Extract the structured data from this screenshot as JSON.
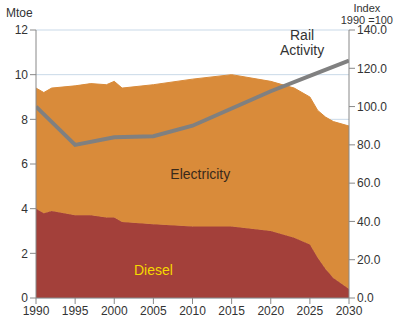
{
  "chart_data": {
    "type": "stacked_area_line",
    "y_label": "Mtoe",
    "y2_label": [
      "Index",
      "1990 =100"
    ],
    "x": [
      1990,
      1991,
      1992,
      1995,
      1997,
      1999,
      2000,
      2001,
      2005,
      2010,
      2015,
      2020,
      2023,
      2025,
      2026,
      2027,
      2028,
      2030
    ],
    "xlim": [
      1990,
      2030
    ],
    "xticks": [
      1990,
      1995,
      2000,
      2005,
      2010,
      2015,
      2020,
      2025,
      2030
    ],
    "ylim": [
      0,
      12
    ],
    "yticks": [
      0,
      2,
      4,
      6,
      8,
      10,
      12
    ],
    "y2lim": [
      0,
      140
    ],
    "y2ticks": [
      {
        "value": 0,
        "label": "0.0"
      },
      {
        "value": 20,
        "label": "20.0"
      },
      {
        "value": 40,
        "label": "40.0"
      },
      {
        "value": 60,
        "label": "60.0"
      },
      {
        "value": 80,
        "label": "80.0"
      },
      {
        "value": 100,
        "label": "100.0"
      },
      {
        "value": 120,
        "label": "120.0"
      },
      {
        "value": 140,
        "label": "140.0"
      }
    ],
    "stacked": true,
    "grid": true,
    "series": [
      {
        "name": "Diesel",
        "type": "area",
        "color": "#A3403A",
        "values": [
          4.0,
          3.8,
          3.9,
          3.7,
          3.7,
          3.6,
          3.6,
          3.4,
          3.3,
          3.2,
          3.2,
          3.0,
          2.7,
          2.4,
          1.8,
          1.3,
          0.9,
          0.4
        ]
      },
      {
        "name": "Electricity",
        "type": "area",
        "color": "#D98B3A",
        "values": [
          5.4,
          5.4,
          5.5,
          5.8,
          5.9,
          5.95,
          6.1,
          6.0,
          6.25,
          6.6,
          6.8,
          6.7,
          6.7,
          6.6,
          6.6,
          6.8,
          7.0,
          7.3
        ]
      },
      {
        "name": "Rail Activity",
        "type": "line",
        "axis": "y2",
        "color": "#808080",
        "values": [
          100,
          null,
          null,
          80,
          null,
          null,
          84,
          null,
          84.5,
          90,
          99,
          108,
          null,
          116,
          null,
          null,
          null,
          124
        ]
      }
    ],
    "annotations": [
      {
        "text": "Electricity",
        "x": 2011,
        "y": 5.5,
        "color": "#3A2A1A"
      },
      {
        "text": "Diesel",
        "x": 2005,
        "y": 1.2,
        "color": "#F5D800"
      },
      {
        "text": "Rail Activity",
        "x": 2024,
        "y": 11.4,
        "color": "#333333"
      }
    ]
  }
}
